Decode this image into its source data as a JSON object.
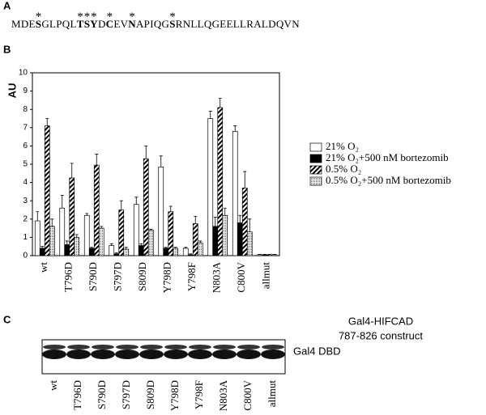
{
  "panel_a": {
    "label": "A",
    "segments": [
      {
        "text": "MDE"
      },
      {
        "text": "S",
        "mark": "*"
      },
      {
        "text": "GLPQL"
      },
      {
        "text": "T",
        "mark": "*"
      },
      {
        "text": "S",
        "mark": "*"
      },
      {
        "text": "Y",
        "mark": "*"
      },
      {
        "text": "D"
      },
      {
        "text": "C",
        "mark": "*"
      },
      {
        "text": "EV"
      },
      {
        "text": "N",
        "mark": "*"
      },
      {
        "text": "APIQG"
      },
      {
        "text": "S",
        "mark": "*"
      },
      {
        "text": "RNLLQGEELLRALDQVN"
      }
    ]
  },
  "chart_data": {
    "type": "bar",
    "panel_label": "B",
    "ylabel": "AU",
    "categories": [
      "wt",
      "T796D",
      "S790D",
      "S797D",
      "S809D",
      "Y798D",
      "Y798F",
      "N803A",
      "C800V",
      "allmut"
    ],
    "series": [
      {
        "name": "21% O₂",
        "fill": "white",
        "values": [
          1.9,
          2.6,
          2.2,
          0.55,
          2.8,
          4.85,
          0.4,
          7.5,
          6.8,
          0.05
        ],
        "errors": [
          0.5,
          0.7,
          0.1,
          0.1,
          0.4,
          0.6,
          0.05,
          0.4,
          0.3,
          0.02
        ]
      },
      {
        "name": "21% O₂+500 nM bortezomib",
        "fill": "black",
        "values": [
          0.4,
          0.6,
          0.4,
          0.1,
          0.55,
          0.4,
          0.05,
          1.6,
          1.8,
          0.05
        ],
        "errors": [
          0.1,
          0.2,
          0.05,
          0.05,
          0.1,
          0.05,
          0.05,
          0.5,
          0.4,
          0.02
        ]
      },
      {
        "name": "0.5% O₂",
        "fill": "hatch",
        "values": [
          7.1,
          4.25,
          4.95,
          2.5,
          5.3,
          2.4,
          1.75,
          8.1,
          3.7,
          0.05
        ],
        "errors": [
          0.4,
          0.8,
          0.6,
          0.5,
          0.7,
          0.3,
          0.4,
          0.5,
          0.9,
          0.02
        ]
      },
      {
        "name": "0.5% O₂+500 nM bortezomib",
        "fill": "dots",
        "values": [
          1.6,
          1.0,
          1.5,
          0.35,
          1.4,
          0.4,
          0.7,
          2.2,
          1.3,
          0.05
        ],
        "errors": [
          0.4,
          0.15,
          0.1,
          0.1,
          0.05,
          0.05,
          0.1,
          0.4,
          0.7,
          0.02
        ]
      }
    ],
    "ylim": [
      0,
      10
    ],
    "yticks": [
      0,
      1,
      2,
      3,
      4,
      5,
      6,
      7,
      8,
      9,
      10
    ],
    "annotations": [
      "Gal4-HIFCAD",
      "787-826 construct"
    ]
  },
  "panel_c": {
    "label": "C",
    "lanes": [
      "wt",
      "T796D",
      "S790D",
      "S797D",
      "S809D",
      "Y798D",
      "Y798F",
      "N803A",
      "C800V",
      "allmut"
    ],
    "band_label": "Gal4 DBD"
  }
}
